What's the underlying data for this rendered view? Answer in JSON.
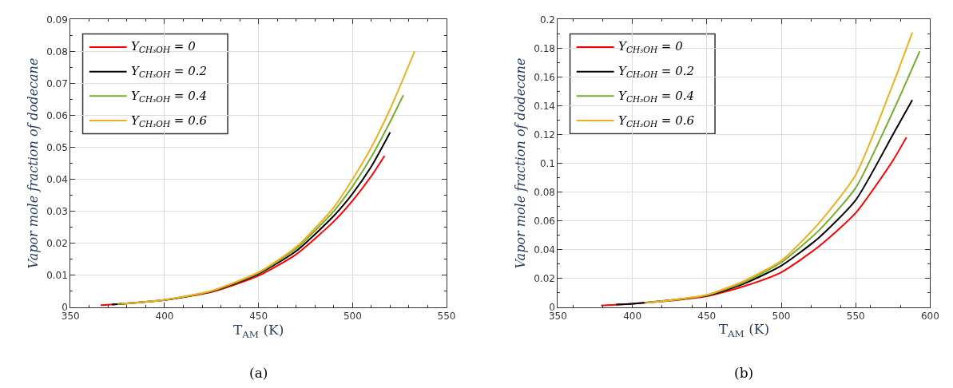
{
  "chart_data": [
    {
      "type": "line",
      "xlabel": "T$_{AM}$ (K)",
      "ylabel": "Vapor mole fraction of dodecane",
      "xlim": [
        350,
        550
      ],
      "xticks": [
        350,
        400,
        450,
        500,
        550
      ],
      "ylim": [
        0,
        0.09
      ],
      "yticks": [
        0,
        0.01,
        0.02,
        0.03,
        0.04,
        0.05,
        0.06,
        0.07,
        0.08,
        0.09
      ],
      "grid": true,
      "legend": "top left",
      "annotations": [
        "(a)"
      ],
      "series": [
        {
          "name": "Y$_{CH₃OH}$ = 0",
          "color": "#ff0000",
          "x": [
            366,
            380,
            400,
            425,
            450,
            470,
            490,
            500,
            510,
            517
          ],
          "values": [
            0.0006,
            0.0011,
            0.0022,
            0.0047,
            0.0098,
            0.0165,
            0.0268,
            0.0333,
            0.041,
            0.0473
          ]
        },
        {
          "name": "Y$_{CH₃OH}$ = 0.2",
          "color": "#000000",
          "x": [
            372,
            400,
            425,
            450,
            470,
            490,
            500,
            510,
            520
          ],
          "values": [
            0.0008,
            0.0022,
            0.0049,
            0.0104,
            0.0175,
            0.0285,
            0.0355,
            0.044,
            0.0547
          ]
        },
        {
          "name": "Y$_{CH₃OH}$ = 0.4",
          "color": "#77ac30",
          "x": [
            375,
            400,
            425,
            450,
            470,
            490,
            500,
            510,
            520,
            527
          ],
          "values": [
            0.0009,
            0.0022,
            0.005,
            0.0107,
            0.0183,
            0.03,
            0.0378,
            0.047,
            0.058,
            0.0663
          ]
        },
        {
          "name": "Y$_{CH₃OH}$ = 0.6",
          "color": "#edb120",
          "x": [
            377,
            400,
            425,
            450,
            470,
            490,
            500,
            510,
            520,
            533
          ],
          "values": [
            0.001,
            0.0023,
            0.0051,
            0.0109,
            0.0188,
            0.0312,
            0.04,
            0.05,
            0.062,
            0.08
          ]
        }
      ]
    },
    {
      "type": "line",
      "xlabel": "T$_{AM}$ (K)",
      "ylabel": "Vapor mole fraction of dodecane",
      "xlim": [
        350,
        600
      ],
      "xticks": [
        350,
        400,
        450,
        500,
        550,
        600
      ],
      "ylim": [
        0,
        0.2
      ],
      "yticks": [
        0,
        0.02,
        0.04,
        0.06,
        0.08,
        0.1,
        0.12,
        0.14,
        0.16,
        0.18,
        0.2
      ],
      "grid": true,
      "legend": "top left",
      "annotations": [
        "(b)"
      ],
      "series": [
        {
          "name": "Y$_{CH₃OH}$ = 0",
          "color": "#ff0000",
          "x": [
            379,
            400,
            425,
            450,
            475,
            500,
            525,
            550,
            575,
            584
          ],
          "values": [
            0.001,
            0.0023,
            0.0043,
            0.0075,
            0.0145,
            0.0242,
            0.042,
            0.0655,
            0.102,
            0.118
          ]
        },
        {
          "name": "Y$_{CH₃OH}$ = 0.2",
          "color": "#000000",
          "x": [
            389,
            400,
            450,
            475,
            500,
            525,
            550,
            575,
            588
          ],
          "values": [
            0.0017,
            0.0023,
            0.008,
            0.0163,
            0.0287,
            0.048,
            0.0744,
            0.12,
            0.144
          ]
        },
        {
          "name": "Y$_{CH₃OH}$ = 0.4",
          "color": "#77ac30",
          "x": [
            408,
            425,
            450,
            475,
            500,
            525,
            550,
            575,
            593
          ],
          "values": [
            0.003,
            0.0046,
            0.0082,
            0.0172,
            0.031,
            0.053,
            0.083,
            0.136,
            0.178
          ]
        },
        {
          "name": "Y$_{CH₃OH}$ = 0.6",
          "color": "#edb120",
          "x": [
            410,
            425,
            450,
            475,
            500,
            525,
            550,
            575,
            588
          ],
          "values": [
            0.0031,
            0.0047,
            0.0085,
            0.0182,
            0.0323,
            0.058,
            0.092,
            0.155,
            0.191
          ]
        }
      ]
    }
  ]
}
